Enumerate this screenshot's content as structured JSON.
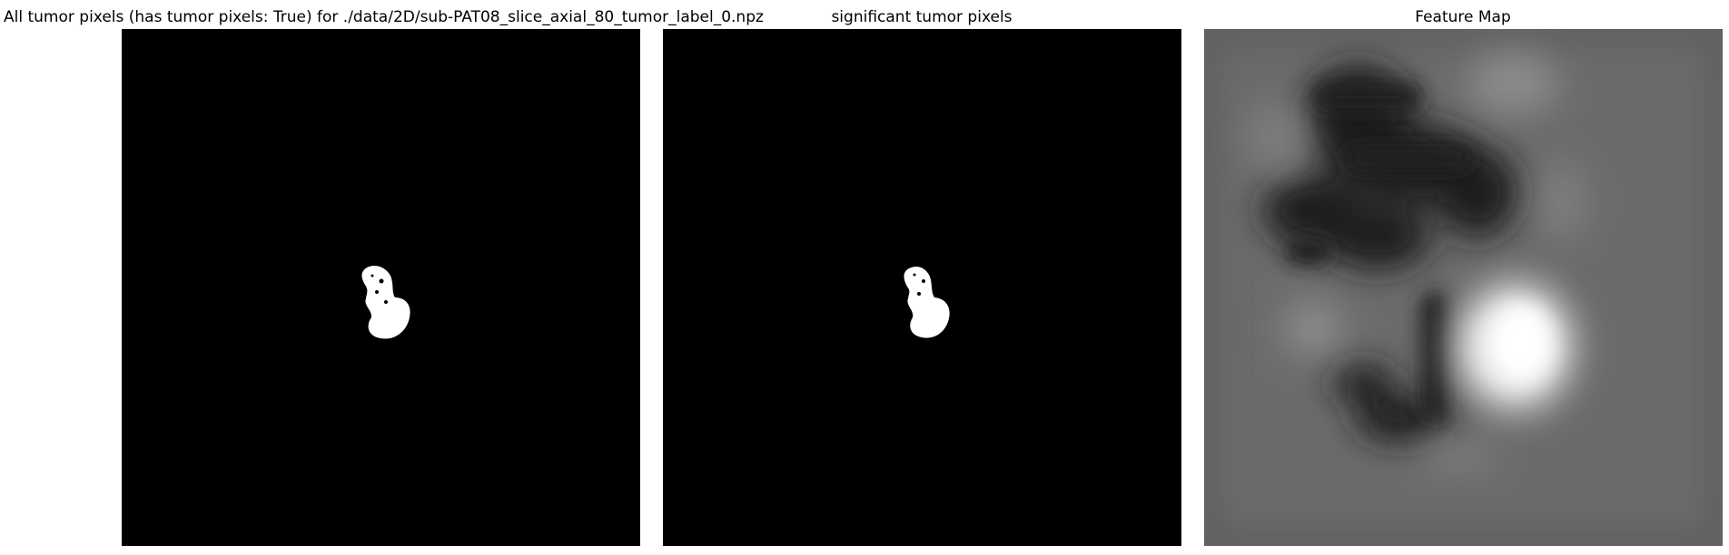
{
  "panels": [
    {
      "title": "All tumor pixels (has tumor pixels: True) for ./data/2D/sub-PAT08_slice_axial_80_tumor_label_0.npz"
    },
    {
      "title": "significant tumor pixels"
    },
    {
      "title": "Feature Map"
    }
  ],
  "colors": {
    "background": "#000000",
    "mask": "#ffffff",
    "feature_base": "#6b6b6b"
  }
}
